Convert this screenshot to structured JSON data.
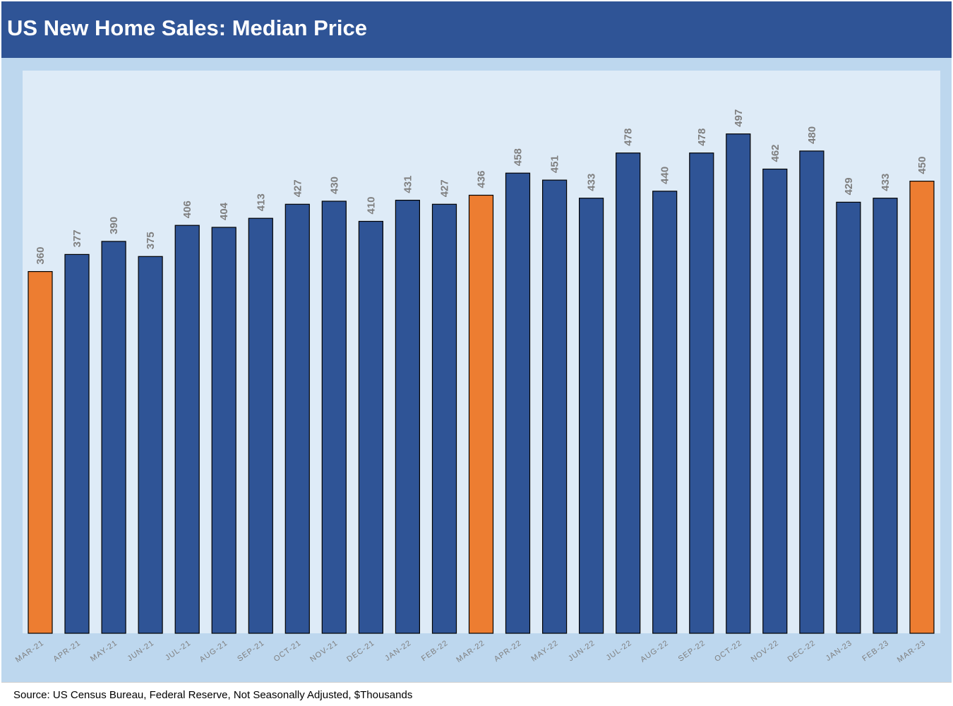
{
  "header": {
    "title": "US New Home Sales: Median Price"
  },
  "footer": {
    "source": "Source: US Census Bureau, Federal Reserve, Not Seasonally Adjusted, $Thousands"
  },
  "colors": {
    "title_bar": "#2f5496",
    "chart_outer_bg": "#bdd7ee",
    "plot_bg": "#deebf7",
    "bar_default": "#2f5496",
    "bar_highlight": "#ed7d31",
    "label_text": "#7f7f7f"
  },
  "chart_data": {
    "type": "bar",
    "title": "US New Home Sales: Median Price",
    "xlabel": "",
    "ylabel": "",
    "categories": [
      "MAR-21",
      "APR-21",
      "MAY-21",
      "JUN-21",
      "JUL-21",
      "AUG-21",
      "SEP-21",
      "OCT-21",
      "NOV-21",
      "DEC-21",
      "JAN-22",
      "FEB-22",
      "MAR-22",
      "APR-22",
      "MAY-22",
      "JUN-22",
      "JUL-22",
      "AUG-22",
      "SEP-22",
      "OCT-22",
      "NOV-22",
      "DEC-22",
      "JAN-23",
      "FEB-23",
      "MAR-23"
    ],
    "values": [
      360,
      377,
      390,
      375,
      406,
      404,
      413,
      427,
      430,
      410,
      431,
      427,
      436,
      458,
      451,
      433,
      478,
      440,
      478,
      497,
      462,
      480,
      429,
      433,
      450
    ],
    "highlighted": [
      "MAR-21",
      "MAR-22",
      "MAR-23"
    ],
    "data_labels": true,
    "grid": false,
    "ylim": [
      0,
      560
    ]
  }
}
